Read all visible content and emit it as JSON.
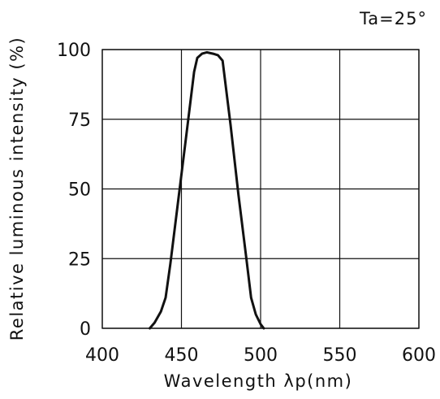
{
  "chart_data": {
    "type": "line",
    "title": "",
    "annotation": "Ta=25°",
    "xlabel": "Wavelength λp(nm)",
    "ylabel": "Relative luminous intensity (%)",
    "xlim": [
      400,
      600
    ],
    "ylim": [
      0,
      100
    ],
    "xticks": [
      400,
      450,
      500,
      550,
      600
    ],
    "yticks": [
      0,
      25,
      50,
      75,
      100
    ],
    "grid": true,
    "series": [
      {
        "x": [
          430,
          433,
          437,
          440,
          443,
          448,
          453,
          458,
          460,
          463,
          466,
          470,
          473,
          476,
          481,
          486,
          491,
          494,
          497,
          500,
          502
        ],
        "y": [
          0,
          2,
          6,
          11,
          23,
          46,
          69,
          92,
          97,
          98.5,
          99,
          98.5,
          98,
          96,
          73,
          48,
          25,
          11,
          5,
          1.5,
          0
        ]
      }
    ]
  }
}
